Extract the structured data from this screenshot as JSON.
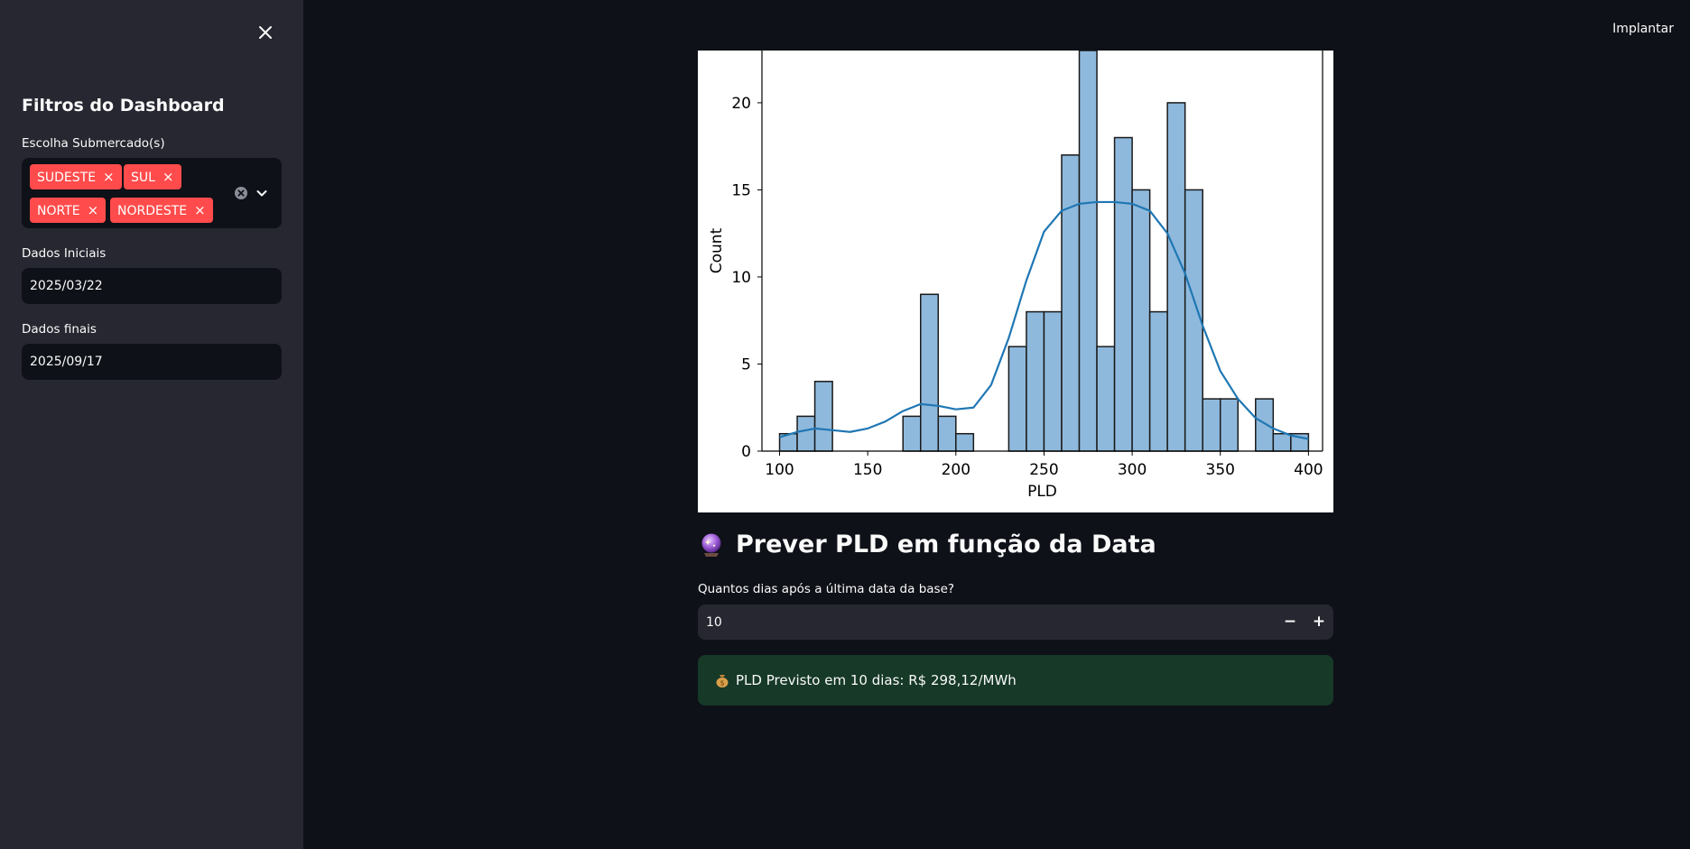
{
  "header": {
    "deploy_label": "Implantar"
  },
  "sidebar": {
    "title": "Filtros do Dashboard",
    "submarket_label": "Escolha Submercado(s)",
    "submarkets": [
      "SUDESTE",
      "SUL",
      "NORTE",
      "NORDESTE"
    ],
    "start_label": "Dados Iniciais",
    "start_value": "2025/03/22",
    "end_label": "Dados finais",
    "end_value": "2025/09/17"
  },
  "main": {
    "section_title": "Prever PLD em função da Data",
    "days_label": "Quantos dias após a última data da base?",
    "days_value": "10",
    "result_text": "PLD Previsto em 10 dias: R$ 298,12/MWh"
  },
  "colors": {
    "background": "#0e1117",
    "sidebar": "#262730",
    "tag": "#ff4b4b",
    "success_bg": "#173928",
    "bar_fill": "#8fb9dc",
    "kde_line": "#1f77b4"
  },
  "icons": {
    "close": "close-icon",
    "clear": "clear-circle-icon",
    "chevron": "chevron-down-icon",
    "section": "crystal-ball-icon",
    "result": "money-bag-icon"
  },
  "chart_data": {
    "type": "bar",
    "xlabel": "PLD",
    "ylabel": "Count",
    "xlim": [
      90,
      408
    ],
    "ylim": [
      0,
      23
    ],
    "x_ticks": [
      100,
      150,
      200,
      250,
      300,
      350,
      400
    ],
    "y_ticks": [
      0,
      5,
      10,
      15,
      20
    ],
    "bin_width": 10,
    "bin_start": 100,
    "counts": [
      1,
      2,
      4,
      0,
      0,
      0,
      0,
      2,
      9,
      2,
      1,
      0,
      0,
      6,
      8,
      8,
      17,
      23,
      6,
      18,
      15,
      8,
      20,
      15,
      3,
      3,
      0,
      3,
      1,
      1
    ],
    "kde": {
      "x": [
        100,
        110,
        120,
        130,
        140,
        150,
        160,
        170,
        180,
        190,
        200,
        210,
        220,
        230,
        240,
        250,
        260,
        270,
        280,
        290,
        300,
        310,
        320,
        330,
        340,
        350,
        360,
        370,
        380,
        390,
        400
      ],
      "y": [
        0.8,
        1.1,
        1.3,
        1.2,
        1.1,
        1.3,
        1.7,
        2.3,
        2.7,
        2.6,
        2.4,
        2.5,
        3.8,
        6.5,
        9.8,
        12.6,
        13.8,
        14.2,
        14.3,
        14.3,
        14.2,
        13.8,
        12.5,
        10.2,
        7.2,
        4.6,
        3.0,
        1.9,
        1.3,
        0.9,
        0.7
      ]
    },
    "grid": false
  }
}
